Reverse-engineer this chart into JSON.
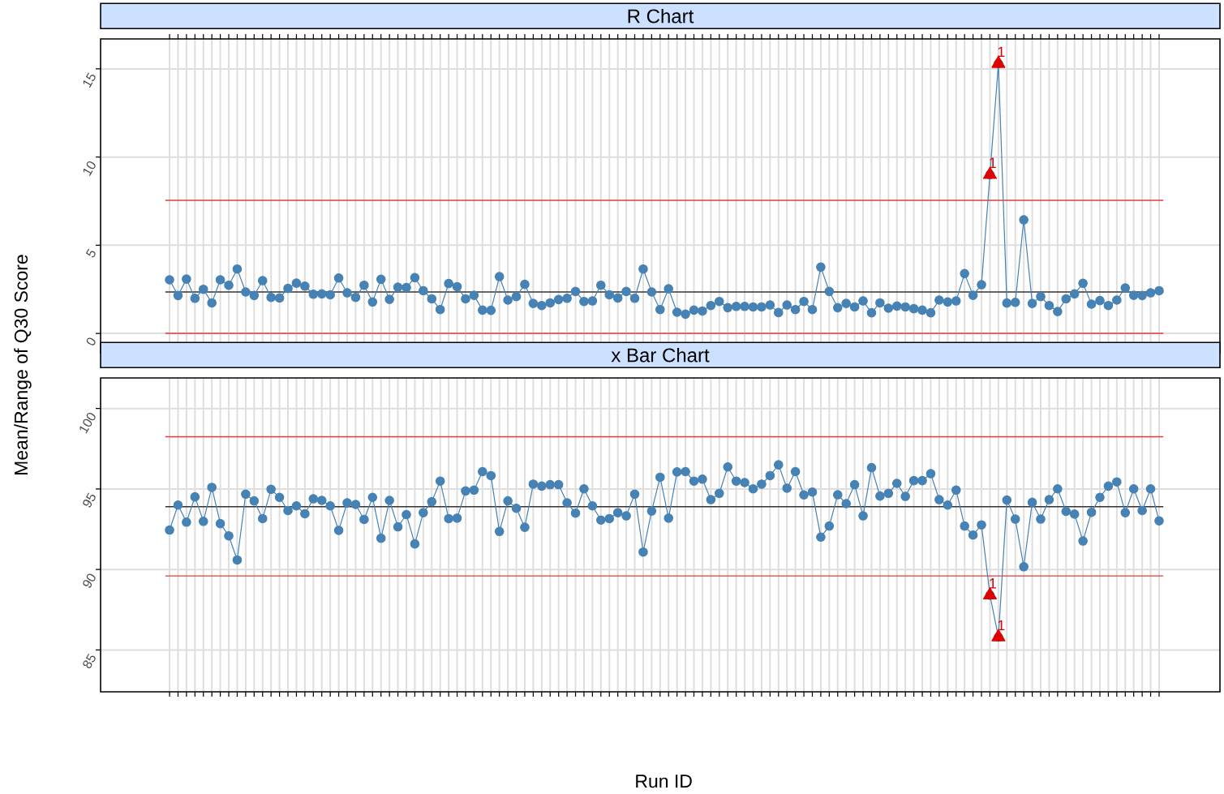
{
  "chart_data": [
    {
      "type": "line",
      "title": "R Chart",
      "ylabel": "Mean/Range of Q30 Score",
      "categories": [
        null,
        null,
        null,
        null,
        null,
        null,
        null,
        null,
        null,
        null,
        null,
        null,
        null,
        null,
        null,
        null,
        null,
        null,
        null,
        null,
        null,
        null,
        null,
        null,
        null,
        null,
        null,
        null,
        null,
        null,
        null,
        null,
        null,
        null,
        null,
        null,
        null,
        null,
        null,
        null,
        null,
        null,
        null,
        null,
        null,
        null,
        null,
        null,
        null,
        null,
        null,
        null,
        null,
        null,
        null,
        null,
        null,
        null,
        null,
        null,
        null,
        null,
        null,
        null,
        null,
        null,
        null,
        null,
        null,
        null,
        null,
        null,
        null,
        null,
        null,
        null,
        null,
        null,
        null,
        null,
        null,
        null,
        null,
        null,
        null,
        null,
        null,
        null,
        null,
        null,
        null,
        null,
        null,
        null,
        null,
        null,
        null,
        null,
        null,
        null,
        null,
        null,
        null,
        null,
        null,
        null,
        null,
        null,
        null,
        null,
        null,
        null,
        null,
        null,
        null,
        null,
        null,
        null
      ],
      "ylim": [
        -1.1,
        16.7
      ],
      "yticks": [
        0,
        5,
        10,
        15
      ],
      "grid": true,
      "series": [
        {
          "type": "line",
          "color": "#4682b4",
          "marker": "circle",
          "values": [
            3.04,
            2.15,
            3.08,
            1.99,
            2.5,
            1.73,
            3.04,
            2.73,
            3.65,
            2.35,
            2.15,
            2.99,
            2.04,
            2.01,
            2.55,
            2.85,
            2.68,
            2.22,
            2.24,
            2.19,
            3.14,
            2.3,
            2.04,
            2.73,
            1.78,
            3.07,
            1.93,
            2.62,
            2.6,
            3.16,
            2.42,
            1.96,
            1.35,
            2.83,
            2.65,
            1.96,
            2.16,
            1.32,
            1.31,
            3.22,
            1.89,
            2.09,
            2.78,
            1.7,
            1.58,
            1.73,
            1.92,
            1.99,
            2.38,
            1.81,
            1.84,
            2.73,
            2.19,
            2.01,
            2.38,
            1.99,
            3.65,
            2.35,
            1.35,
            2.53,
            1.2,
            1.09,
            1.32,
            1.27,
            1.58,
            1.81,
            1.46,
            1.53,
            1.53,
            1.5,
            1.5,
            1.61,
            1.18,
            1.61,
            1.35,
            1.81,
            1.35,
            3.76,
            2.38,
            1.46,
            1.7,
            1.5,
            1.84,
            1.17,
            1.73,
            1.43,
            1.55,
            1.5,
            1.4,
            1.32,
            1.17,
            1.89,
            1.78,
            1.84,
            3.39,
            2.16,
            2.76,
            9.0,
            15.3,
            1.72,
            1.76,
            6.44,
            1.7,
            2.09,
            1.58,
            1.24,
            1.96,
            2.24,
            2.84,
            1.66,
            1.86,
            1.58,
            1.89,
            2.58,
            2.16,
            2.15,
            2.3,
            2.42
          ]
        },
        {
          "type": "scatter",
          "color": "#e00000",
          "marker": "triangle",
          "values": [
            null,
            null,
            null,
            null,
            null,
            null,
            null,
            null,
            null,
            null,
            null,
            null,
            null,
            null,
            null,
            null,
            null,
            null,
            null,
            null,
            null,
            null,
            null,
            null,
            null,
            null,
            null,
            null,
            null,
            null,
            null,
            null,
            null,
            null,
            null,
            null,
            null,
            null,
            null,
            null,
            null,
            null,
            null,
            null,
            null,
            null,
            null,
            null,
            null,
            null,
            null,
            null,
            null,
            null,
            null,
            null,
            null,
            null,
            null,
            null,
            null,
            null,
            null,
            null,
            null,
            null,
            null,
            null,
            null,
            null,
            null,
            null,
            null,
            null,
            null,
            null,
            null,
            null,
            null,
            null,
            null,
            null,
            null,
            null,
            null,
            null,
            null,
            null,
            null,
            null,
            null,
            null,
            null,
            null,
            null,
            null,
            null,
            9.0,
            15.3,
            null,
            null,
            null,
            null,
            null,
            null,
            null,
            null,
            null,
            null,
            null,
            null,
            null,
            null,
            null,
            null,
            null,
            null,
            null
          ]
        }
      ],
      "annotations": [
        {
          "text": "1",
          "y": 9.0
        },
        {
          "text": "1",
          "y": 15.3
        }
      ],
      "ref_lines": [
        {
          "axis": "y",
          "value": 7.55,
          "color": "#e03c3c"
        },
        {
          "axis": "y",
          "value": 2.35,
          "color": "#333333"
        },
        {
          "axis": "y",
          "value": 0,
          "color": "#e03c3c"
        }
      ]
    },
    {
      "type": "line",
      "title": "x Bar Chart",
      "xlabel": "Run ID",
      "categories": [
        null,
        null,
        null,
        null,
        null,
        null,
        null,
        null,
        null,
        null,
        null,
        null,
        null,
        null,
        null,
        null,
        null,
        null,
        null,
        null,
        null,
        null,
        null,
        null,
        null,
        null,
        null,
        null,
        null,
        null,
        null,
        null,
        null,
        null,
        null,
        null,
        null,
        null,
        null,
        null,
        null,
        null,
        null,
        null,
        null,
        null,
        null,
        null,
        null,
        null,
        null,
        null,
        null,
        null,
        null,
        null,
        null,
        null,
        null,
        null,
        null,
        null,
        null,
        null,
        null,
        null,
        null,
        null,
        null,
        null,
        null,
        null,
        null,
        null,
        null,
        null,
        null,
        null,
        null,
        null,
        null,
        null,
        null,
        null,
        null,
        null,
        null,
        null,
        null,
        null,
        null,
        null,
        null,
        null,
        null,
        null,
        null,
        null,
        null,
        null,
        null,
        null,
        null,
        null,
        null,
        null,
        null,
        null,
        null,
        null,
        null,
        null,
        null,
        null,
        null,
        null,
        null,
        null
      ],
      "ylim": [
        82.4,
        101.9
      ],
      "yticks": [
        85,
        90,
        95,
        100
      ],
      "grid": true,
      "series": [
        {
          "type": "line",
          "color": "#4682b4",
          "marker": "circle",
          "values": [
            92.45,
            94.0,
            92.94,
            94.51,
            92.99,
            95.1,
            92.85,
            92.09,
            90.59,
            94.68,
            94.26,
            93.16,
            94.98,
            94.48,
            93.66,
            93.95,
            93.46,
            94.39,
            94.29,
            93.95,
            92.43,
            94.14,
            94.04,
            93.11,
            94.48,
            91.94,
            94.29,
            92.65,
            93.41,
            91.59,
            93.53,
            94.21,
            95.49,
            93.16,
            93.19,
            94.88,
            94.93,
            96.08,
            95.83,
            92.36,
            94.26,
            93.8,
            92.62,
            95.3,
            95.18,
            95.27,
            95.27,
            94.14,
            93.5,
            95.01,
            93.95,
            93.07,
            93.16,
            93.53,
            93.33,
            94.68,
            91.08,
            93.63,
            95.73,
            93.19,
            96.06,
            96.08,
            95.49,
            95.61,
            94.34,
            94.73,
            96.37,
            95.49,
            95.4,
            95.01,
            95.3,
            95.83,
            96.5,
            95.05,
            96.08,
            94.63,
            94.81,
            92.01,
            92.7,
            94.64,
            94.09,
            95.27,
            93.33,
            96.33,
            94.56,
            94.73,
            95.35,
            94.54,
            95.52,
            95.52,
            95.95,
            94.34,
            94.0,
            94.93,
            92.7,
            92.14,
            92.77,
            88.4,
            85.8,
            94.31,
            93.13,
            90.17,
            94.17,
            93.13,
            94.34,
            95.01,
            93.61,
            93.44,
            91.77,
            93.55,
            94.48,
            95.18,
            95.44,
            93.53,
            95.01,
            93.66,
            95.01,
            93.02
          ]
        },
        {
          "type": "scatter",
          "color": "#e00000",
          "marker": "triangle",
          "values": [
            null,
            null,
            null,
            null,
            null,
            null,
            null,
            null,
            null,
            null,
            null,
            null,
            null,
            null,
            null,
            null,
            null,
            null,
            null,
            null,
            null,
            null,
            null,
            null,
            null,
            null,
            null,
            null,
            null,
            null,
            null,
            null,
            null,
            null,
            null,
            null,
            null,
            null,
            null,
            null,
            null,
            null,
            null,
            null,
            null,
            null,
            null,
            null,
            null,
            null,
            null,
            null,
            null,
            null,
            null,
            null,
            null,
            null,
            null,
            null,
            null,
            null,
            null,
            null,
            null,
            null,
            null,
            null,
            null,
            null,
            null,
            null,
            null,
            null,
            null,
            null,
            null,
            null,
            null,
            null,
            null,
            null,
            null,
            null,
            null,
            null,
            null,
            null,
            null,
            null,
            null,
            null,
            null,
            null,
            null,
            null,
            null,
            88.4,
            85.8,
            null,
            null,
            null,
            null,
            null,
            null,
            null,
            null,
            null,
            null,
            null,
            null,
            null,
            null,
            null,
            null,
            null,
            null,
            null
          ]
        }
      ],
      "annotations": [
        {
          "text": "1",
          "y": 88.4
        },
        {
          "text": "1",
          "y": 85.8
        }
      ],
      "ref_lines": [
        {
          "axis": "y",
          "value": 98.25,
          "color": "#e03c3c"
        },
        {
          "axis": "y",
          "value": 93.9,
          "color": "#333333"
        },
        {
          "axis": "y",
          "value": 89.6,
          "color": "#e03c3c"
        }
      ]
    }
  ]
}
